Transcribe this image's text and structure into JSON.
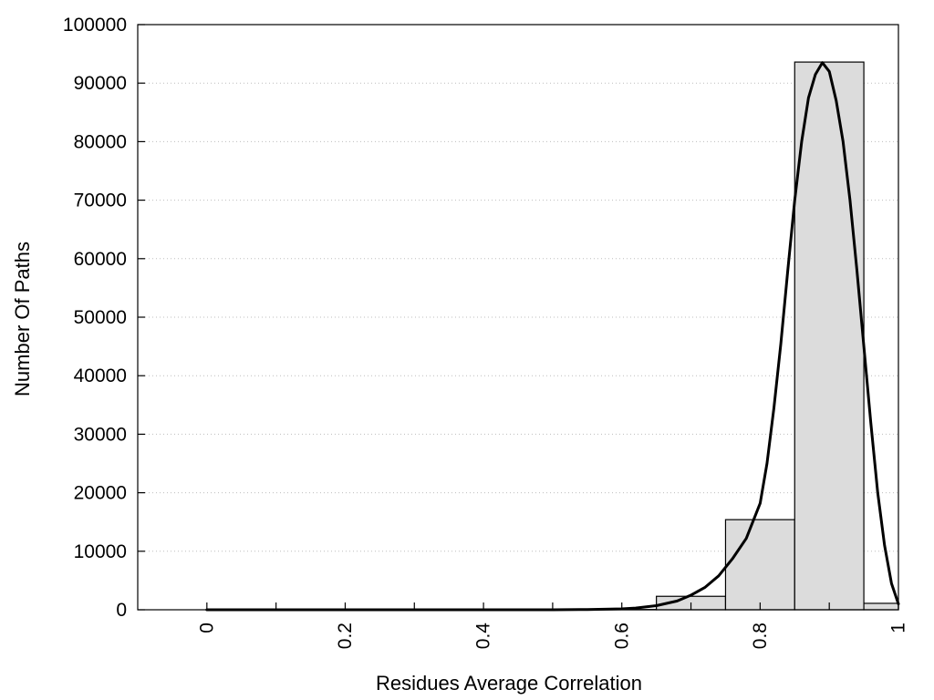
{
  "chart_data": {
    "type": "bar",
    "title": "",
    "xlabel": "Residues Average Correlation",
    "ylabel": "Number Of Paths",
    "xlim": [
      -0.1,
      1.0
    ],
    "ylim": [
      0,
      100000
    ],
    "grid": {
      "horizontal": true,
      "vertical": false,
      "style": "dotted"
    },
    "legend": "none",
    "x_ticks": [
      0,
      0.1,
      0.2,
      0.3,
      0.4,
      0.5,
      0.6,
      0.7,
      0.8,
      0.9,
      1.0
    ],
    "x_tick_labels": [
      {
        "value": 0,
        "label": "0"
      },
      {
        "value": 0.2,
        "label": "0.2"
      },
      {
        "value": 0.4,
        "label": "0.4"
      },
      {
        "value": 0.6,
        "label": "0.6"
      },
      {
        "value": 0.8,
        "label": "0.8"
      },
      {
        "value": 1.0,
        "label": "1"
      }
    ],
    "y_ticks": [
      {
        "value": 0,
        "label": "0"
      },
      {
        "value": 10000,
        "label": "10000"
      },
      {
        "value": 20000,
        "label": "20000"
      },
      {
        "value": 30000,
        "label": "30000"
      },
      {
        "value": 40000,
        "label": "40000"
      },
      {
        "value": 50000,
        "label": "50000"
      },
      {
        "value": 60000,
        "label": "60000"
      },
      {
        "value": 70000,
        "label": "70000"
      },
      {
        "value": 80000,
        "label": "80000"
      },
      {
        "value": 90000,
        "label": "90000"
      },
      {
        "value": 100000,
        "label": "100000"
      }
    ],
    "bins": [
      {
        "x": 0.0,
        "value": 0
      },
      {
        "x": 0.1,
        "value": 0
      },
      {
        "x": 0.2,
        "value": 0
      },
      {
        "x": 0.3,
        "value": 0
      },
      {
        "x": 0.4,
        "value": 0
      },
      {
        "x": 0.5,
        "value": 0
      },
      {
        "x": 0.6,
        "value": 50
      },
      {
        "x": 0.7,
        "value": 2300
      },
      {
        "x": 0.8,
        "value": 15400
      },
      {
        "x": 0.9,
        "value": 93600
      },
      {
        "x": 1.0,
        "value": 1100
      }
    ],
    "bin_width": 0.1,
    "fit_curve": {
      "x": [
        0.0,
        0.1,
        0.2,
        0.3,
        0.4,
        0.5,
        0.55,
        0.6,
        0.62,
        0.65,
        0.68,
        0.7,
        0.72,
        0.74,
        0.76,
        0.78,
        0.8,
        0.81,
        0.82,
        0.83,
        0.84,
        0.85,
        0.86,
        0.87,
        0.88,
        0.89,
        0.9,
        0.91,
        0.92,
        0.93,
        0.94,
        0.95,
        0.96,
        0.97,
        0.98,
        0.99,
        1.0
      ],
      "y": [
        0,
        0,
        0,
        0,
        0,
        0,
        50,
        150,
        300,
        700,
        1500,
        2500,
        3800,
        5800,
        8700,
        12200,
        18200,
        25000,
        34500,
        45500,
        58000,
        70000,
        80000,
        87500,
        91500,
        93500,
        92000,
        87000,
        80000,
        70000,
        58000,
        45000,
        32000,
        20000,
        11000,
        4500,
        1000
      ]
    }
  }
}
